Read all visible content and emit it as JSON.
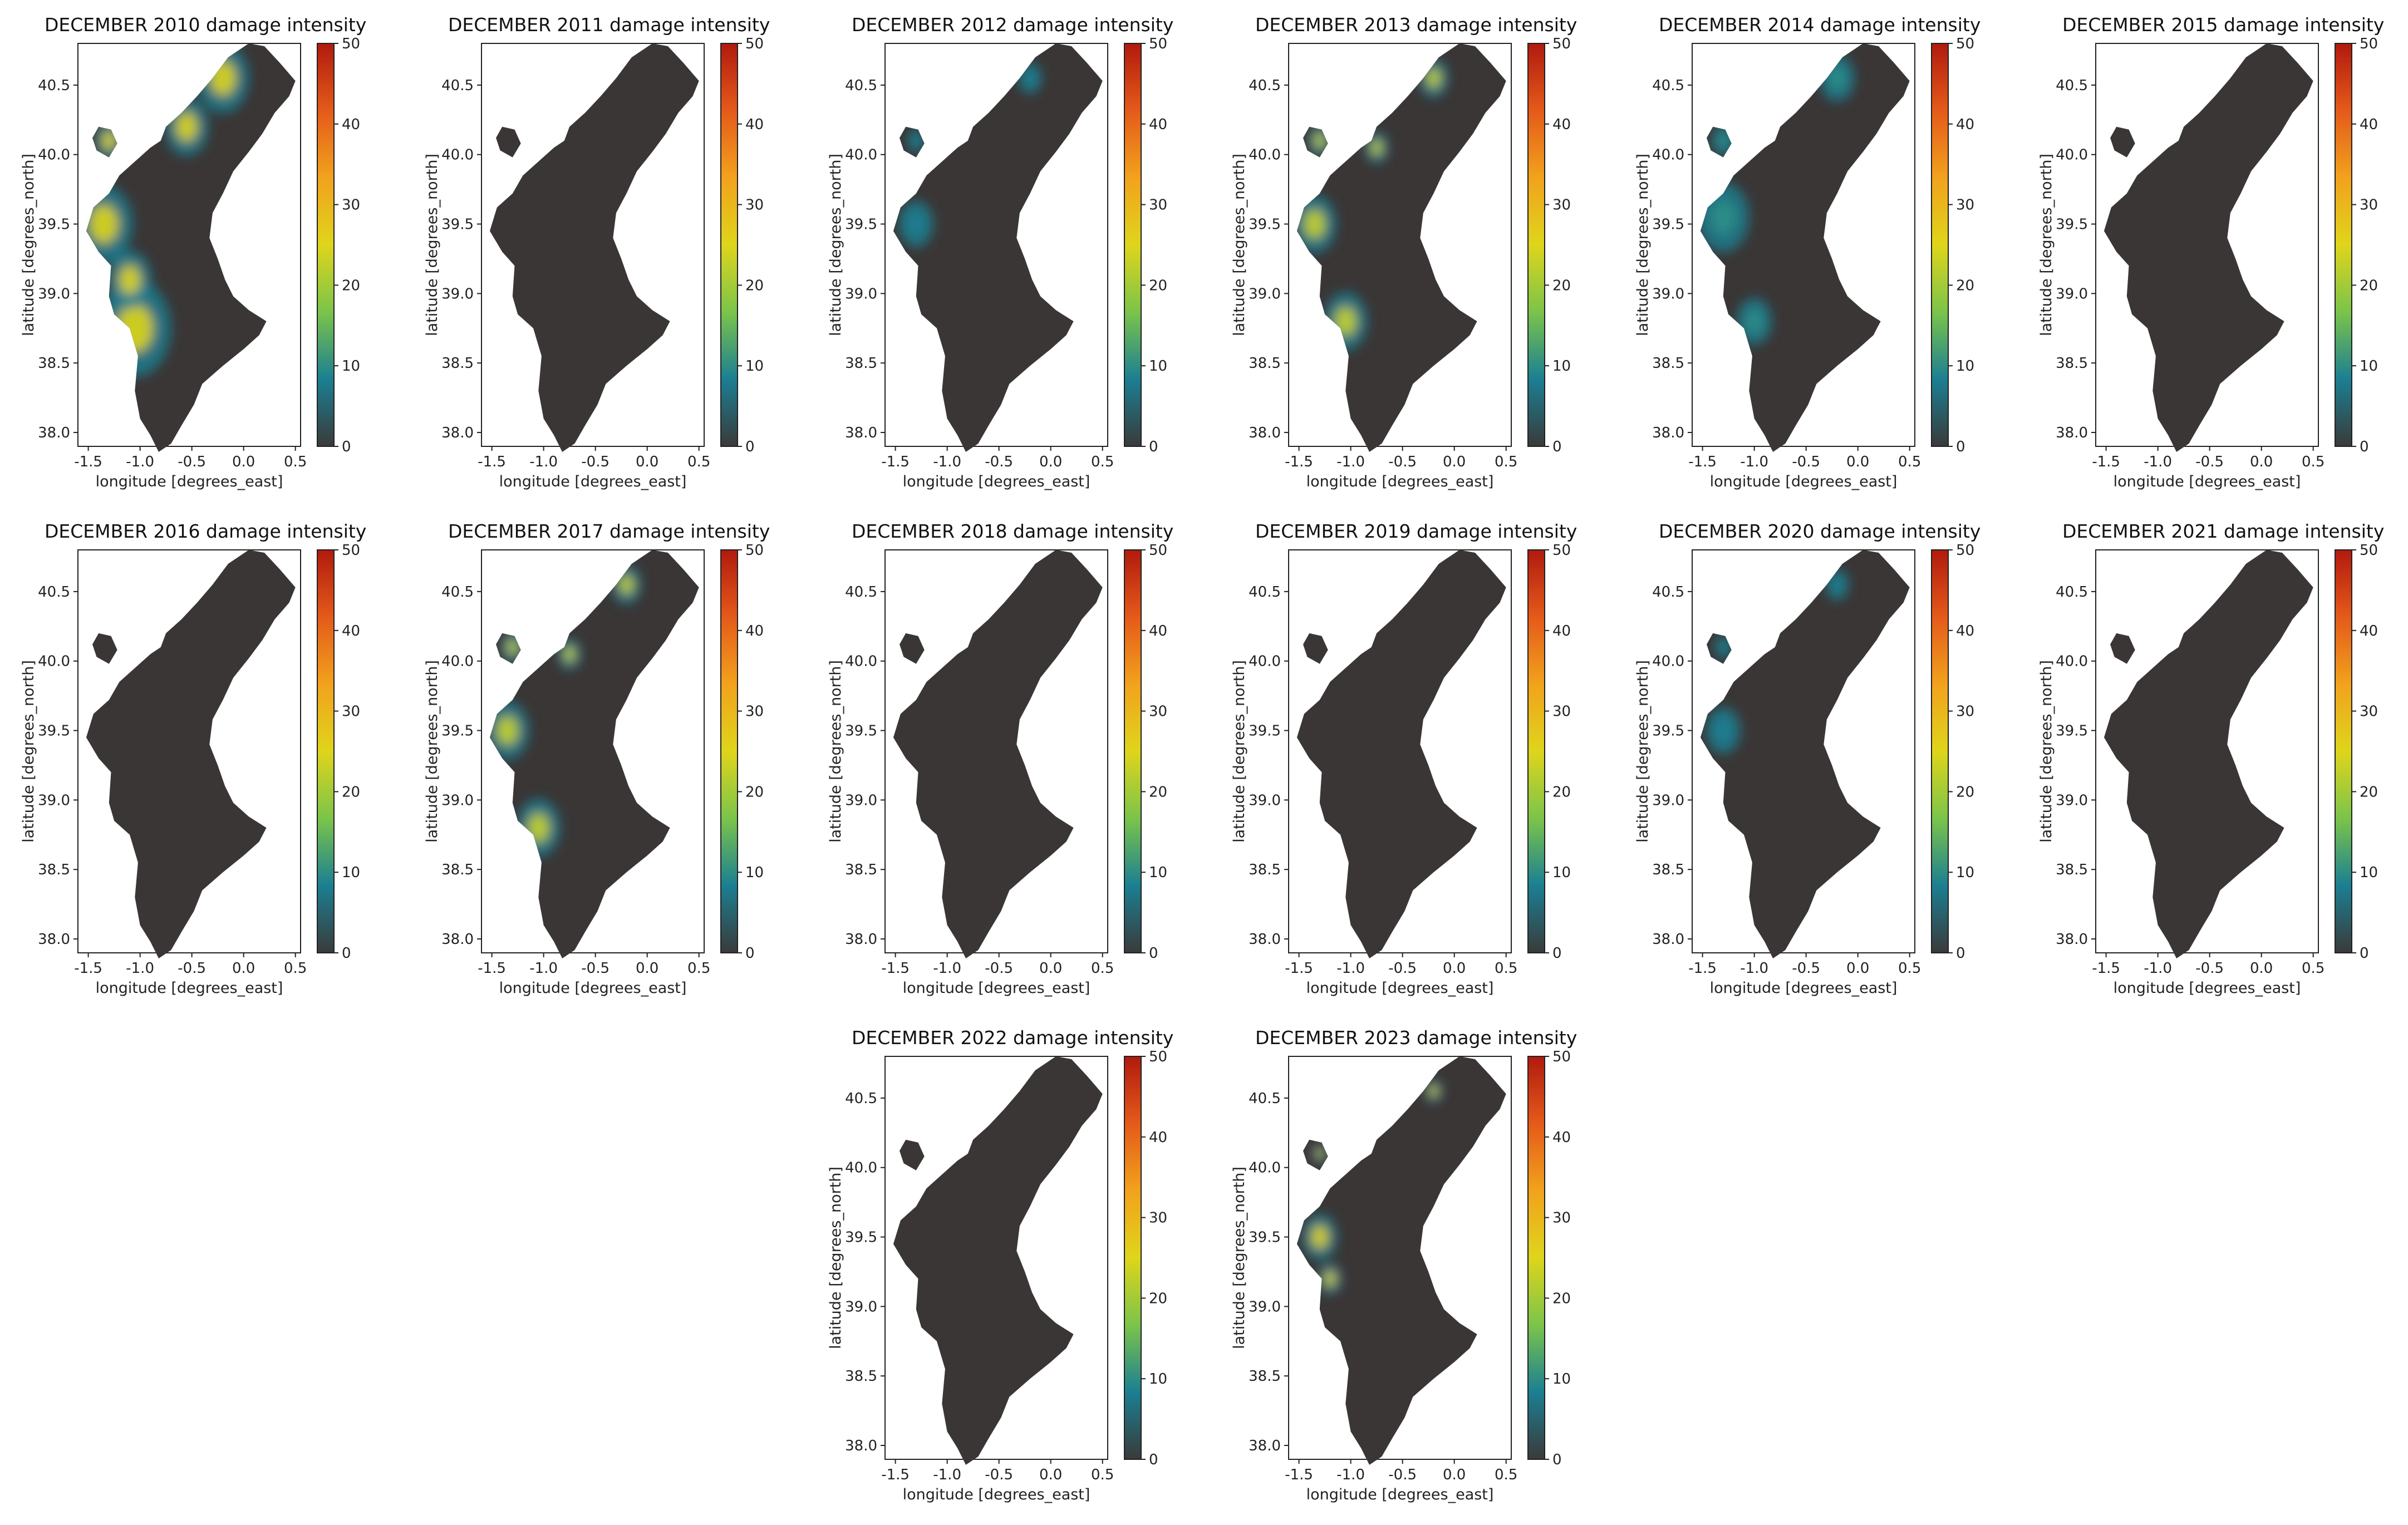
{
  "chart_data": {
    "type": "heatmap",
    "panel_count": 14,
    "panels": [
      {
        "title": "DECEMBER 2010 damage intensity",
        "intensity": "high"
      },
      {
        "title": "DECEMBER 2011 damage intensity",
        "intensity": "none"
      },
      {
        "title": "DECEMBER 2012 damage intensity",
        "intensity": "low"
      },
      {
        "title": "DECEMBER 2013 damage intensity",
        "intensity": "medium"
      },
      {
        "title": "DECEMBER 2014 damage intensity",
        "intensity": "low-medium"
      },
      {
        "title": "DECEMBER 2015 damage intensity",
        "intensity": "none"
      },
      {
        "title": "DECEMBER 2016 damage intensity",
        "intensity": "none"
      },
      {
        "title": "DECEMBER 2017 damage intensity",
        "intensity": "medium"
      },
      {
        "title": "DECEMBER 2018 damage intensity",
        "intensity": "none"
      },
      {
        "title": "DECEMBER 2019 damage intensity",
        "intensity": "none"
      },
      {
        "title": "DECEMBER 2020 damage intensity",
        "intensity": "low"
      },
      {
        "title": "DECEMBER 2021 damage intensity",
        "intensity": "none"
      },
      {
        "title": "DECEMBER 2022 damage intensity",
        "intensity": "none"
      },
      {
        "title": "DECEMBER 2023 damage intensity",
        "intensity": "medium-local"
      }
    ],
    "xlabel": "longitude [degrees_east]",
    "ylabel": "latitude [degrees_north]",
    "xticks": [
      "-1.5",
      "-1.0",
      "-0.5",
      "0.0",
      "0.5"
    ],
    "xtick_values": [
      -1.5,
      -1.0,
      -0.5,
      0.0,
      0.5
    ],
    "yticks": [
      "38.0",
      "38.5",
      "39.0",
      "39.5",
      "40.0",
      "40.5"
    ],
    "ytick_values": [
      38.0,
      38.5,
      39.0,
      39.5,
      40.0,
      40.5
    ],
    "xlim": [
      -1.6,
      0.55
    ],
    "ylim": [
      37.9,
      40.8
    ],
    "colorbar": {
      "ticks": [
        "0",
        "10",
        "20",
        "30",
        "40",
        "50"
      ],
      "tick_values": [
        0,
        10,
        20,
        30,
        40,
        50
      ],
      "range": [
        0,
        50
      ],
      "colors": [
        "#3a3a3a",
        "#1b7f92",
        "#7bc44a",
        "#dfd51b",
        "#f2a21d",
        "#e45a1a",
        "#b11a0e"
      ]
    },
    "map_color": "#3b3636",
    "grid": false
  }
}
